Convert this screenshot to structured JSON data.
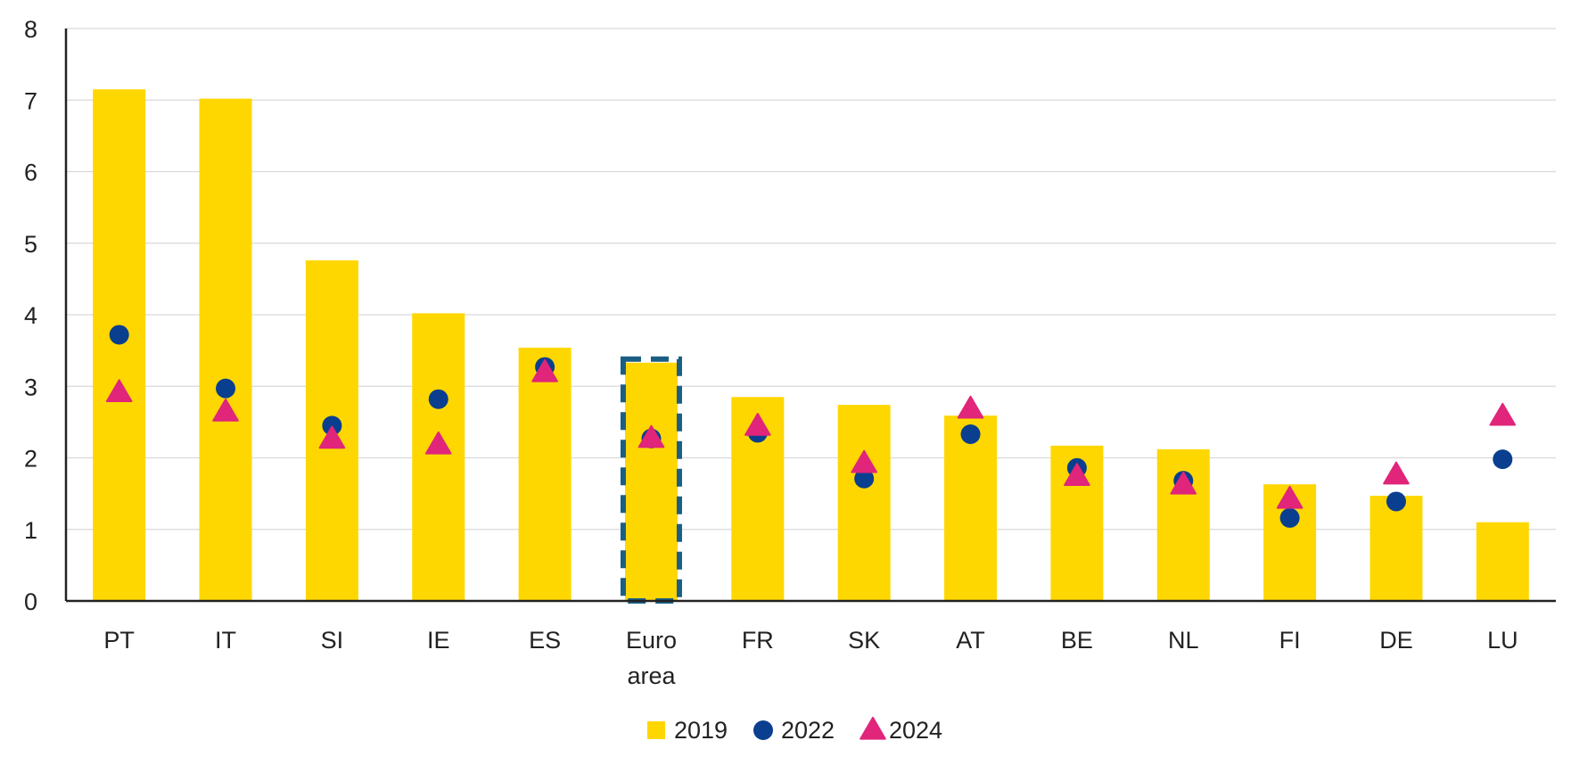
{
  "chart_data": {
    "type": "bar",
    "categories": [
      {
        "lines": [
          "PT"
        ]
      },
      {
        "lines": [
          "IT"
        ]
      },
      {
        "lines": [
          "SI"
        ]
      },
      {
        "lines": [
          "IE"
        ]
      },
      {
        "lines": [
          "ES"
        ]
      },
      {
        "lines": [
          "Euro",
          "area"
        ]
      },
      {
        "lines": [
          "FR"
        ]
      },
      {
        "lines": [
          "SK"
        ]
      },
      {
        "lines": [
          "AT"
        ]
      },
      {
        "lines": [
          "BE"
        ]
      },
      {
        "lines": [
          "NL"
        ]
      },
      {
        "lines": [
          "FI"
        ]
      },
      {
        "lines": [
          "DE"
        ]
      },
      {
        "lines": [
          "LU"
        ]
      }
    ],
    "series": [
      {
        "name": "2019",
        "mark": "bar",
        "color": "#FFD700",
        "values": [
          7.15,
          7.02,
          4.76,
          4.02,
          3.54,
          3.33,
          2.85,
          2.74,
          2.59,
          2.17,
          2.12,
          1.63,
          1.47,
          1.1
        ]
      },
      {
        "name": "2022",
        "mark": "circle",
        "color": "#0A3F8F",
        "values": [
          3.72,
          2.97,
          2.45,
          2.82,
          3.27,
          2.27,
          2.35,
          1.71,
          2.33,
          1.86,
          1.68,
          1.16,
          1.39,
          1.98
        ]
      },
      {
        "name": "2024",
        "mark": "triangle",
        "color": "#E0257A",
        "values": [
          2.91,
          2.64,
          2.26,
          2.18,
          3.19,
          2.27,
          2.44,
          1.92,
          2.68,
          1.74,
          1.62,
          1.42,
          1.76,
          2.58
        ]
      }
    ],
    "highlight": {
      "category_index": 5,
      "style": "dashed-outline",
      "color": "#1B5E84"
    },
    "yticks": [
      "0",
      "1",
      "2",
      "3",
      "4",
      "5",
      "6",
      "7",
      "8"
    ],
    "ylim": [
      0,
      8
    ],
    "grid": true,
    "legend_position": "bottom-center"
  }
}
